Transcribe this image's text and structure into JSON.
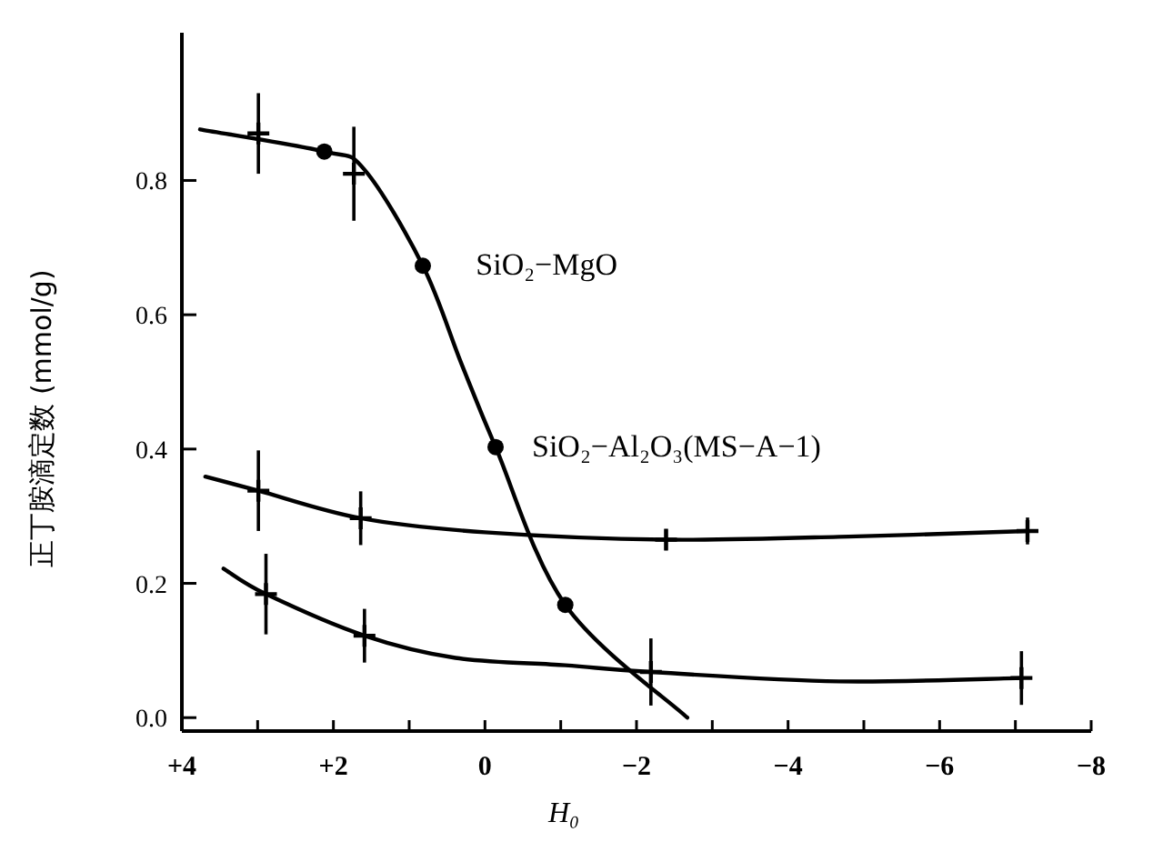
{
  "chart_data": {
    "type": "line",
    "xlabel": "H₀",
    "ylabel": "正丁胺滴定数 (mmol/g)",
    "xlim": [
      4,
      -8
    ],
    "ylim": [
      -0.02,
      1.02
    ],
    "xticks": [
      {
        "value": 4,
        "label": "+4"
      },
      {
        "value": 3,
        "label": null
      },
      {
        "value": 2,
        "label": "+2"
      },
      {
        "value": 1,
        "label": null
      },
      0,
      {
        "value": -1,
        "label": null
      },
      {
        "value": -2,
        "label": "−2"
      },
      {
        "value": -3,
        "label": null
      },
      {
        "value": -4,
        "label": "−4"
      },
      {
        "value": -5,
        "label": null
      },
      {
        "value": -6,
        "label": "−6"
      },
      {
        "value": -7,
        "label": null
      },
      {
        "value": -8,
        "label": "−8"
      }
    ],
    "yticks": [
      {
        "value": 0,
        "label": "0.0"
      },
      {
        "value": 0.2,
        "label": "0.2"
      },
      {
        "value": 0.4,
        "label": "0.4"
      },
      {
        "value": 0.6,
        "label": "0.6"
      },
      {
        "value": 0.8,
        "label": "0.8"
      }
    ],
    "line_style": "solid",
    "series": [
      {
        "type": "line",
        "color": "#000000",
        "marker": "none",
        "x": [
          3.76,
          2.12,
          1.59,
          0.82,
          0.31,
          -0.14,
          -1.06,
          -2.67
        ],
        "values": [
          0.876,
          0.843,
          0.816,
          0.673,
          0.527,
          0.403,
          0.168,
          0.0
        ]
      },
      {
        "type": "scatter",
        "color": "#000000",
        "marker": "circle",
        "x": [
          2.12,
          0.82,
          -0.14,
          -1.06
        ],
        "values": [
          0.843,
          0.673,
          0.403,
          0.168
        ]
      },
      {
        "type": "scatter",
        "color": "#000000",
        "marker": "cross",
        "x": [
          2.99,
          1.73
        ],
        "values": [
          0.87,
          0.81
        ],
        "errors": [
          0.06,
          0.07
        ]
      },
      {
        "type": "line",
        "color": "#000000",
        "marker": "none",
        "x": [
          3.69,
          2.99,
          1.64,
          0,
          -2.39,
          -4.9,
          -7.16
        ],
        "values": [
          0.359,
          0.338,
          0.297,
          0.276,
          0.265,
          0.27,
          0.278
        ]
      },
      {
        "type": "scatter",
        "color": "#000000",
        "marker": "cross",
        "x": [
          2.99,
          1.64,
          -2.39,
          -7.16
        ],
        "values": [
          0.338,
          0.297,
          0.265,
          0.278
        ],
        "errors": [
          0.06,
          0.04,
          0.015,
          0.02
        ]
      },
      {
        "type": "line",
        "color": "#000000",
        "marker": "none",
        "x": [
          3.45,
          2.89,
          1.59,
          0.39,
          -1.06,
          -2.19,
          -4.67,
          -7.08
        ],
        "values": [
          0.222,
          0.184,
          0.122,
          0.089,
          0.078,
          0.068,
          0.054,
          0.059
        ]
      },
      {
        "type": "scatter",
        "color": "#000000",
        "marker": "cross",
        "x": [
          2.89,
          1.59,
          -2.19,
          -7.08
        ],
        "values": [
          0.184,
          0.122,
          0.068,
          0.059
        ],
        "errors": [
          0.06,
          0.04,
          0.05,
          0.04
        ]
      }
    ],
    "annotations": [
      {
        "text": "SiO₂−MgO",
        "x": 0.6,
        "y": 0.673
      },
      {
        "text": "SiO₂−Al₂O₃(MS−A−1)",
        "x": -0.14,
        "y": 0.403
      }
    ]
  }
}
